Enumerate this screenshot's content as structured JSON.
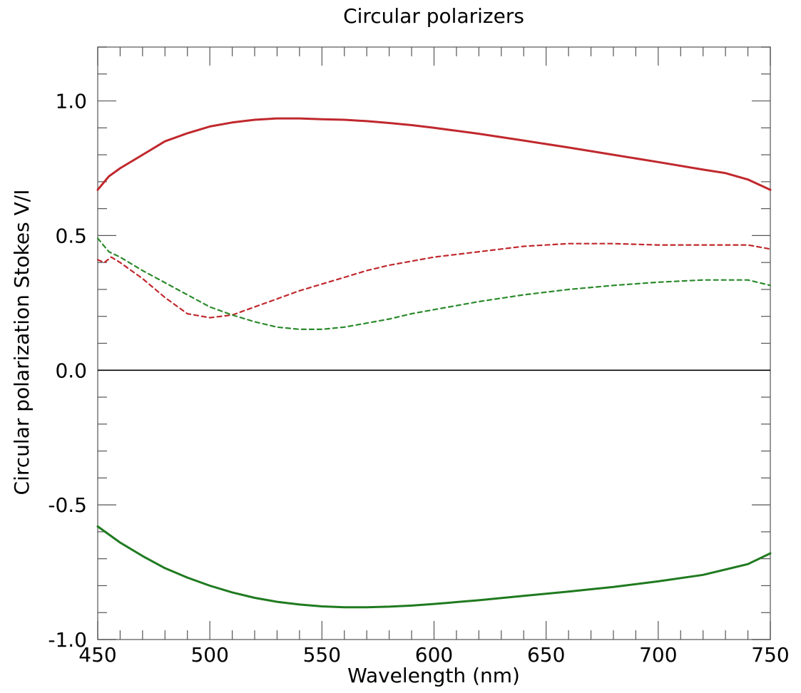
{
  "chart_data": {
    "type": "line",
    "title": "Circular polarizers",
    "xlabel": "Wavelength (nm)",
    "ylabel": "Circular polarization Stokes V/I",
    "xlim": [
      450,
      750
    ],
    "ylim": [
      -1.0,
      1.2
    ],
    "x_ticks": [
      450,
      500,
      550,
      600,
      650,
      700,
      750
    ],
    "x_tick_labels": [
      "450",
      "500",
      "550",
      "600",
      "650",
      "700",
      "750"
    ],
    "y_ticks": [
      -1.0,
      -0.5,
      0.0,
      0.5,
      1.0
    ],
    "y_tick_labels": [
      "-1.0",
      "-0.5",
      "0.0",
      "0.5",
      "1.0"
    ],
    "grid": false,
    "zero_line": true,
    "series": [
      {
        "color": "#c0282d",
        "style": "solid",
        "x": [
          450,
          455,
          460,
          470,
          480,
          490,
          500,
          510,
          520,
          530,
          540,
          550,
          560,
          570,
          580,
          590,
          600,
          620,
          640,
          660,
          680,
          700,
          720,
          730,
          740,
          750
        ],
        "y": [
          0.67,
          0.72,
          0.75,
          0.8,
          0.85,
          0.88,
          0.905,
          0.92,
          0.93,
          0.935,
          0.935,
          0.932,
          0.93,
          0.925,
          0.918,
          0.91,
          0.9,
          0.878,
          0.853,
          0.827,
          0.8,
          0.773,
          0.745,
          0.732,
          0.708,
          0.67
        ]
      },
      {
        "color": "#c0282d",
        "style": "dashed",
        "x": [
          450,
          453,
          456,
          460,
          470,
          480,
          490,
          500,
          510,
          520,
          530,
          540,
          550,
          560,
          570,
          580,
          590,
          600,
          620,
          640,
          660,
          680,
          700,
          720,
          740,
          750
        ],
        "y": [
          0.41,
          0.4,
          0.42,
          0.4,
          0.34,
          0.27,
          0.21,
          0.195,
          0.205,
          0.235,
          0.265,
          0.295,
          0.32,
          0.345,
          0.37,
          0.39,
          0.405,
          0.42,
          0.44,
          0.46,
          0.47,
          0.47,
          0.465,
          0.465,
          0.465,
          0.45
        ]
      },
      {
        "color": "#2a8a2a",
        "style": "dashed",
        "x": [
          450,
          455,
          460,
          470,
          480,
          490,
          500,
          510,
          520,
          530,
          540,
          550,
          560,
          570,
          580,
          590,
          600,
          620,
          640,
          660,
          680,
          700,
          720,
          740,
          750
        ],
        "y": [
          0.49,
          0.44,
          0.42,
          0.37,
          0.325,
          0.28,
          0.235,
          0.205,
          0.18,
          0.16,
          0.152,
          0.152,
          0.16,
          0.175,
          0.19,
          0.21,
          0.225,
          0.255,
          0.28,
          0.3,
          0.315,
          0.327,
          0.335,
          0.335,
          0.315
        ]
      },
      {
        "color": "#1f7a1f",
        "style": "solid",
        "x": [
          450,
          460,
          470,
          480,
          490,
          500,
          510,
          520,
          530,
          540,
          550,
          560,
          570,
          580,
          590,
          600,
          620,
          640,
          660,
          680,
          700,
          720,
          740,
          750
        ],
        "y": [
          -0.58,
          -0.64,
          -0.69,
          -0.735,
          -0.77,
          -0.8,
          -0.825,
          -0.845,
          -0.86,
          -0.87,
          -0.877,
          -0.88,
          -0.88,
          -0.878,
          -0.874,
          -0.868,
          -0.854,
          -0.838,
          -0.822,
          -0.805,
          -0.784,
          -0.76,
          -0.72,
          -0.68
        ]
      }
    ]
  }
}
